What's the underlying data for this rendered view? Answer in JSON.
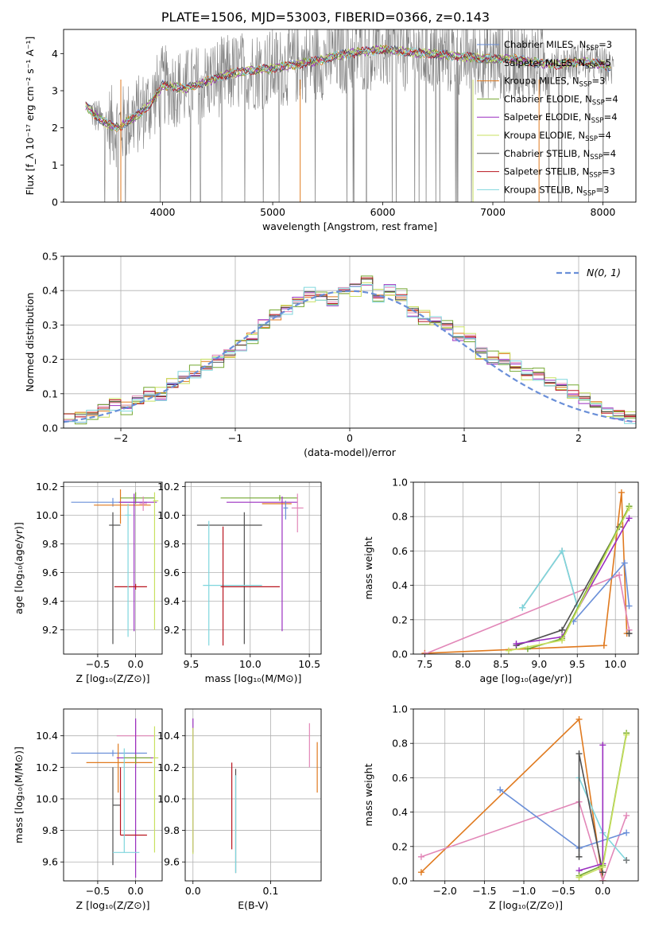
{
  "figure_title": "PLATE=1506, MJD=53003, FIBERID=0366, z=0.143",
  "colors": {
    "blue": "#6a8fd8",
    "orange": "#e07a1f",
    "black": "#505050",
    "purple": "#9a2fc0",
    "yellow": "#c8e060",
    "green": "#74a830",
    "pink": "#e287b8",
    "red": "#b8141e",
    "cyan": "#7fd6dd",
    "grey": "#808080",
    "grid": "#b0b0b0"
  },
  "chart_data": [
    {
      "id": "spectrum",
      "type": "line",
      "title": "",
      "xlabel": "wavelength [Angstrom, rest frame]",
      "ylabel": "Flux [f_λ 10⁻¹⁷ erg cm⁻² s⁻¹ A⁻¹]",
      "xlim": [
        3100,
        8300
      ],
      "ylim": [
        0,
        4.65
      ],
      "xticks": [
        4000,
        5000,
        6000,
        7000,
        8000
      ],
      "yticks": [
        0,
        1,
        2,
        3,
        4
      ],
      "grid": false,
      "legend_position": "top-right",
      "data_line": {
        "color": "grey",
        "x_range": [
          3350,
          8100
        ]
      },
      "model_continuum": {
        "x": [
          3300,
          3400,
          3500,
          3600,
          3700,
          3800,
          3900,
          4000,
          4200,
          4400,
          4600,
          4800,
          5000,
          5200,
          5400,
          5600,
          5800,
          6000,
          6200,
          6400,
          6600,
          6800,
          7000,
          7200,
          7400,
          7600,
          7800,
          8000,
          8070
        ],
        "y": [
          2.6,
          2.3,
          2.1,
          2.0,
          2.2,
          2.4,
          2.7,
          3.15,
          3.05,
          3.25,
          3.45,
          3.55,
          3.6,
          3.7,
          3.8,
          3.95,
          4.05,
          4.1,
          4.05,
          4.0,
          3.95,
          3.9,
          3.85,
          3.85,
          3.75,
          3.7,
          3.8,
          3.7,
          3.6
        ]
      },
      "series": [
        {
          "name": "Chabrier MILES, N_SSP=3",
          "color": "blue"
        },
        {
          "name": "Salpeter MILES, N_SSP=5",
          "color": "grey"
        },
        {
          "name": "Kroupa MILES, N_SSP=3",
          "color": "orange"
        },
        {
          "name": "Chabrier ELODIE, N_SSP=4",
          "color": "green"
        },
        {
          "name": "Salpeter ELODIE, N_SSP=4",
          "color": "purple"
        },
        {
          "name": "Kroupa ELODIE, N_SSP=4",
          "color": "yellow"
        },
        {
          "name": "Chabrier STELIB, N_SSP=4",
          "color": "black"
        },
        {
          "name": "Salpeter STELIB, N_SSP=3",
          "color": "red"
        },
        {
          "name": "Kroupa STELIB, N_SSP=3",
          "color": "cyan"
        }
      ]
    },
    {
      "id": "residuals",
      "type": "histogram",
      "xlabel": "(data-model)/error",
      "ylabel": "Normed distribution",
      "xlim": [
        -2.5,
        2.5
      ],
      "ylim": [
        0,
        0.5
      ],
      "xticks": [
        -2,
        -1,
        0,
        1,
        2
      ],
      "yticks": [
        0.0,
        0.1,
        0.2,
        0.3,
        0.4,
        0.5
      ],
      "grid": true,
      "legend_position": "top-right",
      "reference_curve": {
        "name": "N(0, 1)",
        "color": "blue",
        "style": "dashed"
      },
      "bin_edges": [
        -2.5,
        -2.4,
        -2.3,
        -2.2,
        -2.1,
        -2.0,
        -1.9,
        -1.8,
        -1.7,
        -1.6,
        -1.5,
        -1.4,
        -1.3,
        -1.2,
        -1.1,
        -1.0,
        -0.9,
        -0.8,
        -0.7,
        -0.6,
        -0.5,
        -0.4,
        -0.3,
        -0.2,
        -0.1,
        0.0,
        0.1,
        0.2,
        0.3,
        0.4,
        0.5,
        0.6,
        0.7,
        0.8,
        0.9,
        1.0,
        1.1,
        1.2,
        1.3,
        1.4,
        1.5,
        1.6,
        1.7,
        1.8,
        1.9,
        2.0,
        2.1,
        2.2,
        2.3,
        2.4,
        2.5
      ],
      "histograms": [
        {
          "color": "orange",
          "offset": 0.012
        },
        {
          "color": "purple",
          "offset": -0.01
        },
        {
          "color": "green",
          "offset": 0.018
        },
        {
          "color": "yellow",
          "offset": -0.018
        },
        {
          "color": "pink",
          "offset": 0.006
        },
        {
          "color": "red",
          "offset": -0.004
        },
        {
          "color": "black",
          "offset": 0.0
        },
        {
          "color": "cyan",
          "offset": -0.012
        }
      ],
      "histogram_base": [
        0.028,
        0.03,
        0.04,
        0.058,
        0.072,
        0.06,
        0.08,
        0.1,
        0.1,
        0.13,
        0.15,
        0.16,
        0.18,
        0.2,
        0.22,
        0.24,
        0.26,
        0.3,
        0.33,
        0.35,
        0.37,
        0.39,
        0.38,
        0.37,
        0.4,
        0.41,
        0.43,
        0.38,
        0.4,
        0.38,
        0.34,
        0.32,
        0.31,
        0.3,
        0.27,
        0.26,
        0.22,
        0.2,
        0.2,
        0.18,
        0.16,
        0.16,
        0.13,
        0.12,
        0.1,
        0.09,
        0.07,
        0.05,
        0.04,
        0.03
      ]
    },
    {
      "id": "age_vs_Z",
      "type": "errorbar",
      "xlabel": "Z [log₁₀(Z/Z⊙)]",
      "ylabel": "age  [log₁₀(age/yr)]",
      "xlim": [
        -0.95,
        0.35
      ],
      "ylim": [
        9.03,
        10.23
      ],
      "xticks": [
        -0.5,
        0.0
      ],
      "yticks": [
        9.2,
        9.4,
        9.6,
        9.8,
        10.0,
        10.2
      ],
      "grid": true,
      "points": [
        {
          "color": "blue",
          "x": -0.3,
          "xerr": [
            0.55,
            0.45
          ],
          "y": 10.09,
          "yerr": [
            0.03,
            0.03
          ]
        },
        {
          "color": "orange",
          "x": -0.2,
          "xerr": [
            0.35,
            0.4
          ],
          "y": 10.07,
          "yerr": [
            0.13,
            0.11
          ]
        },
        {
          "color": "green",
          "x": 0.0,
          "xerr": [
            0.2,
            0.25
          ],
          "y": 10.12,
          "yerr": [
            0.04,
            0.04
          ]
        },
        {
          "color": "purple",
          "x": -0.02,
          "xerr": [
            0.2,
            0.3
          ],
          "y": 10.09,
          "yerr": [
            0.9,
            0.06
          ]
        },
        {
          "color": "yellow",
          "x": 0.25,
          "xerr": [
            0.02,
            0.05
          ],
          "y": 10.1,
          "yerr": [
            0.9,
            0.06
          ]
        },
        {
          "color": "black",
          "x": -0.3,
          "xerr": [
            0.05,
            0.1
          ],
          "y": 9.93,
          "yerr": [
            0.83,
            0.09
          ]
        },
        {
          "color": "red",
          "x": 0.0,
          "xerr": [
            0.28,
            0.15
          ],
          "y": 9.5,
          "yerr": [
            0.02,
            0.02
          ]
        },
        {
          "color": "cyan",
          "x": -0.1,
          "xerr": [
            0.04,
            0.04
          ],
          "y": 10.0,
          "yerr": [
            0.85,
            0.08
          ]
        },
        {
          "color": "pink",
          "x": 0.1,
          "xerr": [
            0.05,
            0.05
          ],
          "y": 10.08,
          "yerr": [
            0.05,
            0.05
          ]
        }
      ]
    },
    {
      "id": "age_vs_mass",
      "type": "errorbar",
      "xlabel": "mass [log₁₀(M/M⊙)]",
      "ylabel": "",
      "xlim": [
        9.45,
        10.6
      ],
      "ylim": [
        9.03,
        10.23
      ],
      "xticks": [
        9.5,
        10.0,
        10.5
      ],
      "yticks": [
        9.2,
        9.4,
        9.6,
        9.8,
        10.0,
        10.2
      ],
      "grid": true,
      "points": [
        {
          "color": "green",
          "x": 10.25,
          "xerr": [
            0.5,
            0.15
          ],
          "y": 10.12,
          "yerr": [
            0.02,
            0.02
          ]
        },
        {
          "color": "purple",
          "x": 10.27,
          "xerr": [
            0.47,
            0.13
          ],
          "y": 10.09,
          "yerr": [
            0.9,
            0.04
          ]
        },
        {
          "color": "orange",
          "x": 10.3,
          "xerr": [
            0.2,
            0.05
          ],
          "y": 10.08,
          "yerr": [
            0.02,
            0.02
          ]
        },
        {
          "color": "pink",
          "x": 10.4,
          "xerr": [
            0.05,
            0.05
          ],
          "y": 10.05,
          "yerr": [
            0.17,
            0.1
          ]
        },
        {
          "color": "blue",
          "x": 10.3,
          "xerr": [
            0.02,
            0.02
          ],
          "y": 10.05,
          "yerr": [
            0.08,
            0.05
          ]
        },
        {
          "color": "black",
          "x": 9.95,
          "xerr": [
            0.4,
            0.15
          ],
          "y": 9.93,
          "yerr": [
            0.83,
            0.09
          ]
        },
        {
          "color": "cyan",
          "x": 9.65,
          "xerr": [
            0.05,
            0.45
          ],
          "y": 9.51,
          "yerr": [
            0.42,
            0.45
          ]
        },
        {
          "color": "red",
          "x": 9.77,
          "xerr": [
            0.02,
            0.48
          ],
          "y": 9.5,
          "yerr": [
            0.41,
            0.42
          ]
        }
      ]
    },
    {
      "id": "weight_vs_age",
      "type": "line",
      "xlabel": "age  [log₁₀(age/yr)]",
      "ylabel": "mass weight",
      "xlim": [
        7.35,
        10.3
      ],
      "ylim": [
        0,
        1
      ],
      "xticks": [
        7.5,
        8.0,
        8.5,
        9.0,
        9.5,
        10.0
      ],
      "yticks": [
        0.0,
        0.2,
        0.4,
        0.6,
        0.8,
        1.0
      ],
      "grid": true,
      "series": [
        {
          "color": "orange",
          "x": [
            7.5,
            9.85,
            10.08,
            10.15
          ],
          "y": [
            0.005,
            0.05,
            0.94,
            0.12
          ]
        },
        {
          "color": "pink",
          "x": [
            7.5,
            10.05,
            10.18
          ],
          "y": [
            0.0,
            0.46,
            0.14
          ]
        },
        {
          "color": "blue",
          "x": [
            9.45,
            10.12,
            10.18
          ],
          "y": [
            0.19,
            0.53,
            0.28
          ]
        },
        {
          "color": "grey",
          "x": [
            8.78,
            9.3,
            9.5
          ],
          "y": [
            0.27,
            0.6,
            0.28
          ]
        },
        {
          "color": "cyan",
          "x": [
            8.78,
            9.3,
            9.5
          ],
          "y": [
            0.27,
            0.6,
            0.28
          ]
        },
        {
          "color": "black",
          "x": [
            8.7,
            9.3,
            10.05
          ],
          "y": [
            0.05,
            0.14,
            0.74
          ]
        },
        {
          "color": "purple",
          "x": [
            8.7,
            9.3,
            10.18
          ],
          "y": [
            0.06,
            0.1,
            0.79
          ]
        },
        {
          "color": "green",
          "x": [
            8.85,
            9.3,
            10.18
          ],
          "y": [
            0.03,
            0.09,
            0.86
          ]
        },
        {
          "color": "yellow",
          "x": [
            8.6,
            9.3,
            10.18
          ],
          "y": [
            0.02,
            0.08,
            0.85
          ]
        },
        {
          "color": "black",
          "x": [
            10.18,
            10.18
          ],
          "y": [
            0.12,
            0.12
          ]
        }
      ]
    },
    {
      "id": "mass_vs_Z",
      "type": "errorbar",
      "xlabel": "Z [log₁₀(Z/Z⊙)]",
      "ylabel": "mass [log₁₀(M/M⊙)]",
      "xlim": [
        -0.95,
        0.35
      ],
      "ylim": [
        9.48,
        10.57
      ],
      "xticks": [
        -0.5,
        0.0
      ],
      "yticks": [
        9.6,
        9.8,
        10.0,
        10.2,
        10.4
      ],
      "grid": true,
      "points": [
        {
          "color": "blue",
          "x": -0.3,
          "xerr": [
            0.55,
            0.45
          ],
          "y": 10.29,
          "yerr": [
            0.02,
            0.02
          ]
        },
        {
          "color": "orange",
          "x": -0.23,
          "xerr": [
            0.42,
            0.45
          ],
          "y": 10.23,
          "yerr": [
            0.19,
            0.12
          ]
        },
        {
          "color": "pink",
          "x": 0.0,
          "xerr": [
            0.25,
            0.25
          ],
          "y": 10.4,
          "yerr": [
            0.2,
            0.1
          ]
        },
        {
          "color": "purple",
          "x": 0.0,
          "xerr": [
            0.25,
            0.25
          ],
          "y": 10.26,
          "yerr": [
            0.76,
            0.25
          ]
        },
        {
          "color": "yellow",
          "x": 0.25,
          "xerr": [
            0.02,
            0.05
          ],
          "y": 10.26,
          "yerr": [
            0.6,
            0.2
          ]
        },
        {
          "color": "black",
          "x": -0.3,
          "xerr": [
            0.0,
            0.1
          ],
          "y": 9.96,
          "yerr": [
            0.38,
            0.24
          ]
        },
        {
          "color": "red",
          "x": -0.2,
          "xerr": [
            0.0,
            0.35
          ],
          "y": 9.77,
          "yerr": [
            0.0,
            0.43
          ]
        },
        {
          "color": "cyan",
          "x": -0.15,
          "xerr": [
            0.15,
            0.2
          ],
          "y": 9.66,
          "yerr": [
            0.0,
            0.66
          ]
        },
        {
          "color": "green",
          "x": 0.0,
          "xerr": [
            0.15,
            0.2
          ],
          "y": 10.26,
          "yerr": [
            0.04,
            0.02
          ]
        }
      ]
    },
    {
      "id": "mass_vs_EBV",
      "type": "errorbar",
      "xlabel": "E(B-V)",
      "ylabel": "",
      "xlim": [
        -0.01,
        0.165
      ],
      "ylim": [
        9.48,
        10.57
      ],
      "xticks": [
        0.0,
        0.1
      ],
      "yticks": [
        9.6,
        9.8,
        10.0,
        10.2,
        10.4
      ],
      "grid": true,
      "points": [
        {
          "color": "purple",
          "x": 0.0,
          "y": 10.43,
          "yerr": [
            0.77,
            0.08
          ]
        },
        {
          "color": "yellow",
          "x": 0.0,
          "y": 10.2,
          "yerr": [
            0.55,
            0.25
          ]
        },
        {
          "color": "red",
          "x": 0.05,
          "y": 9.96,
          "yerr": [
            0.28,
            0.27
          ]
        },
        {
          "color": "black",
          "x": 0.055,
          "y": 9.96,
          "yerr": [
            0.43,
            0.23
          ]
        },
        {
          "color": "cyan",
          "x": 0.055,
          "y": 9.8,
          "yerr": [
            0.27,
            0.35
          ]
        },
        {
          "color": "pink",
          "x": 0.15,
          "y": 10.35,
          "yerr": [
            0.15,
            0.13
          ]
        },
        {
          "color": "orange",
          "x": 0.16,
          "y": 10.2,
          "yerr": [
            0.16,
            0.16
          ]
        }
      ]
    },
    {
      "id": "weight_vs_Z",
      "type": "line",
      "xlabel": "Z [log₁₀(Z/Z⊙)]",
      "ylabel": "mass weight",
      "xlim": [
        -2.4,
        0.45
      ],
      "ylim": [
        0,
        1
      ],
      "xticks": [
        -2.0,
        -1.5,
        -1.0,
        -0.5,
        0.0
      ],
      "yticks": [
        0.0,
        0.2,
        0.4,
        0.6,
        0.8,
        1.0
      ],
      "grid": true,
      "series": [
        {
          "color": "orange",
          "x": [
            -2.3,
            -0.3,
            0.0
          ],
          "y": [
            0.05,
            0.94,
            0.0
          ]
        },
        {
          "color": "pink",
          "x": [
            -2.3,
            -0.3,
            0.0,
            0.3
          ],
          "y": [
            0.14,
            0.46,
            0.0,
            0.38
          ]
        },
        {
          "color": "blue",
          "x": [
            -1.3,
            -0.3,
            0.3
          ],
          "y": [
            0.53,
            0.19,
            0.28
          ]
        },
        {
          "color": "cyan",
          "x": [
            -0.3,
            0.0,
            0.3
          ],
          "y": [
            0.6,
            0.28,
            0.12
          ]
        },
        {
          "color": "black",
          "x": [
            -0.3,
            -0.3,
            0.0,
            0.0
          ],
          "y": [
            0.14,
            0.74,
            0.05,
            0.05
          ]
        },
        {
          "color": "purple",
          "x": [
            -0.3,
            0.0,
            0.0
          ],
          "y": [
            0.06,
            0.1,
            0.79
          ]
        },
        {
          "color": "green",
          "x": [
            -0.3,
            0.0,
            0.3
          ],
          "y": [
            0.03,
            0.09,
            0.86
          ]
        },
        {
          "color": "yellow",
          "x": [
            -0.3,
            0.0,
            0.3
          ],
          "y": [
            0.02,
            0.08,
            0.85
          ]
        },
        {
          "color": "grey",
          "x": [
            0.3,
            0.3
          ],
          "y": [
            0.12,
            0.12
          ]
        }
      ]
    }
  ]
}
